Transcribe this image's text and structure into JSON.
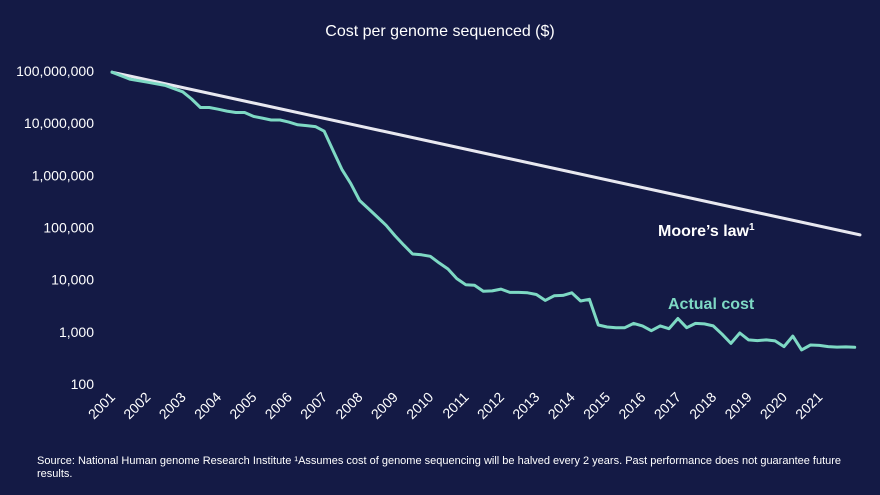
{
  "chart_data": {
    "type": "line",
    "title": "Cost per genome sequenced ($)",
    "yscale": "log",
    "ylim": [
      100,
      100000000
    ],
    "y_ticks": [
      100,
      1000,
      10000,
      100000,
      1000000,
      10000000,
      100000000
    ],
    "y_tick_labels": [
      "100",
      "1,000",
      "10,000",
      "100,000",
      "1,000,000",
      "10,000,000",
      "100,000,000"
    ],
    "xlim": [
      2001,
      2022.15
    ],
    "x_ticks": [
      2001,
      2002,
      2003,
      2004,
      2005,
      2006,
      2007,
      2008,
      2009,
      2010,
      2011,
      2012,
      2013,
      2014,
      2015,
      2016,
      2017,
      2018,
      2019,
      2020,
      2021
    ],
    "x_tick_labels": [
      "2001",
      "2002",
      "2003",
      "2004",
      "2005",
      "2006",
      "2007",
      "2008",
      "2009",
      "2010",
      "2011",
      "2012",
      "2013",
      "2014",
      "2015",
      "2016",
      "2017",
      "2018",
      "2019",
      "2020",
      "2021"
    ],
    "series": [
      {
        "name": "Moore’s law",
        "superscript": "1",
        "color": "#e8e8f0",
        "x": [
          2001,
          2022.15
        ],
        "y": [
          95000000,
          72000
        ]
      },
      {
        "name": "Actual cost",
        "color": "#7ed9c4",
        "x": [
          2001.0,
          2001.5,
          2002.0,
          2002.5,
          2003.0,
          2003.25,
          2003.5,
          2003.75,
          2004.0,
          2004.25,
          2004.5,
          2004.75,
          2005.0,
          2005.25,
          2005.5,
          2005.75,
          2006.0,
          2006.25,
          2006.5,
          2006.75,
          2007.0,
          2007.25,
          2007.5,
          2007.75,
          2008.0,
          2008.25,
          2008.5,
          2008.75,
          2009.0,
          2009.25,
          2009.5,
          2009.75,
          2010.0,
          2010.25,
          2010.5,
          2010.75,
          2011.0,
          2011.25,
          2011.5,
          2011.75,
          2012.0,
          2012.25,
          2012.5,
          2012.75,
          2013.0,
          2013.25,
          2013.5,
          2013.75,
          2014.0,
          2014.25,
          2014.5,
          2014.75,
          2015.0,
          2015.25,
          2015.5,
          2015.75,
          2016.0,
          2016.25,
          2016.5,
          2016.75,
          2017.0,
          2017.25,
          2017.5,
          2017.75,
          2018.0,
          2018.25,
          2018.5,
          2018.75,
          2019.0,
          2019.25,
          2019.5,
          2019.75,
          2020.0,
          2020.25,
          2020.5,
          2020.75,
          2021.0,
          2021.25,
          2021.5,
          2021.75,
          2022.0
        ],
        "y": [
          95000000,
          70000000,
          61000000,
          53000000,
          40000000,
          29000000,
          20000000,
          20000000,
          18500000,
          17000000,
          16000000,
          16000000,
          13500000,
          12500000,
          11500000,
          11500000,
          10500000,
          9300000,
          9000000,
          8600000,
          7000000,
          3000000,
          1300000,
          700000,
          330000,
          230000,
          160000,
          110000,
          70000,
          46000,
          31000,
          30000,
          28000,
          21000,
          16000,
          10500,
          8000,
          7800,
          6000,
          6100,
          6600,
          5700,
          5700,
          5600,
          5200,
          4000,
          4900,
          5000,
          5600,
          3900,
          4200,
          1350,
          1240,
          1200,
          1200,
          1450,
          1300,
          1050,
          1300,
          1150,
          1800,
          1200,
          1450,
          1420,
          1300,
          900,
          600,
          950,
          700,
          680,
          700,
          670,
          520,
          830,
          450,
          560,
          550,
          520,
          510,
          515,
          505
        ]
      }
    ]
  },
  "footnote": "Source: National Human genome Research Institute ¹Assumes cost of genome sequencing will be halved every 2 years. Past performance does not guarantee future results."
}
